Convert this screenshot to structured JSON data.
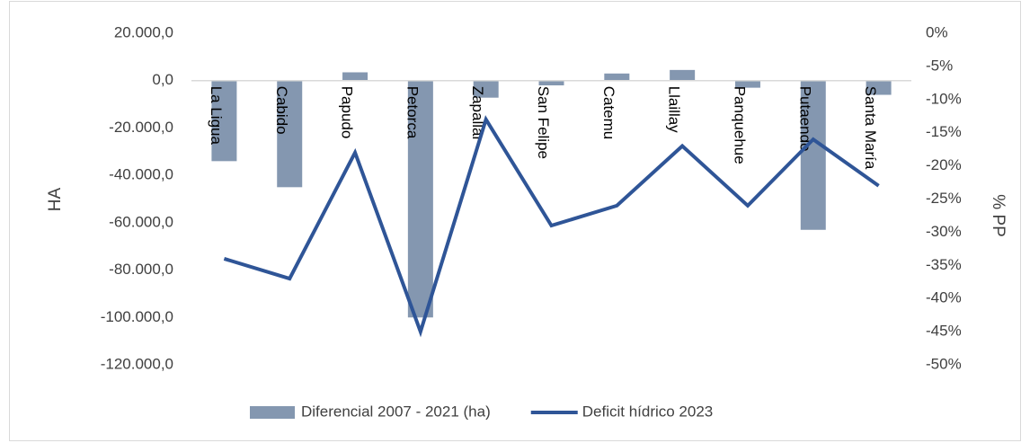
{
  "chart_data": {
    "type": "combo",
    "ylabel": "HA",
    "y2label": "% PP",
    "categories": [
      "La Ligua",
      "Cabido",
      "Papudo",
      "Petorca",
      "Zapallar",
      "San Felipe",
      "Catemu",
      "Llaillay",
      "Panquehue",
      "Putaendo",
      "Santa María"
    ],
    "series": [
      {
        "name": "Diferencial 2007 - 2021 (ha)",
        "type": "bar",
        "color": "#8497b0",
        "values": [
          -34000,
          -45000,
          3500,
          -100000,
          -7200,
          -2000,
          3000,
          4500,
          -3000,
          -63000,
          -6000
        ]
      },
      {
        "name": "Deficit hídrico 2023",
        "type": "line",
        "axis": "y2",
        "color": "#2f5597",
        "values": [
          -34,
          -37,
          -18,
          -45,
          -13,
          -29,
          -26,
          -17,
          -26,
          -16,
          -23
        ]
      }
    ],
    "ylim": [
      -120000,
      20000
    ],
    "yticks": [
      {
        "value": 20000,
        "label": "20.000,0"
      },
      {
        "value": 0,
        "label": "0,0"
      },
      {
        "value": -20000,
        "label": "-20.000,0"
      },
      {
        "value": -40000,
        "label": "-40.000,0"
      },
      {
        "value": -60000,
        "label": "-60.000,0"
      },
      {
        "value": -80000,
        "label": "-80.000,0"
      },
      {
        "value": -100000,
        "label": "-100.000,0"
      },
      {
        "value": -120000,
        "label": "-120.000,0"
      }
    ],
    "y2lim": [
      -50,
      0
    ],
    "y2ticks": [
      {
        "value": 0,
        "label": "0%"
      },
      {
        "value": -5,
        "label": "-5%"
      },
      {
        "value": -10,
        "label": "-10%"
      },
      {
        "value": -15,
        "label": "-15%"
      },
      {
        "value": -20,
        "label": "-20%"
      },
      {
        "value": -25,
        "label": "-25%"
      },
      {
        "value": -30,
        "label": "-30%"
      },
      {
        "value": -35,
        "label": "-35%"
      },
      {
        "value": -40,
        "label": "-40%"
      },
      {
        "value": -45,
        "label": "-45%"
      },
      {
        "value": -50,
        "label": "-50%"
      }
    ],
    "legend": "bottom"
  }
}
